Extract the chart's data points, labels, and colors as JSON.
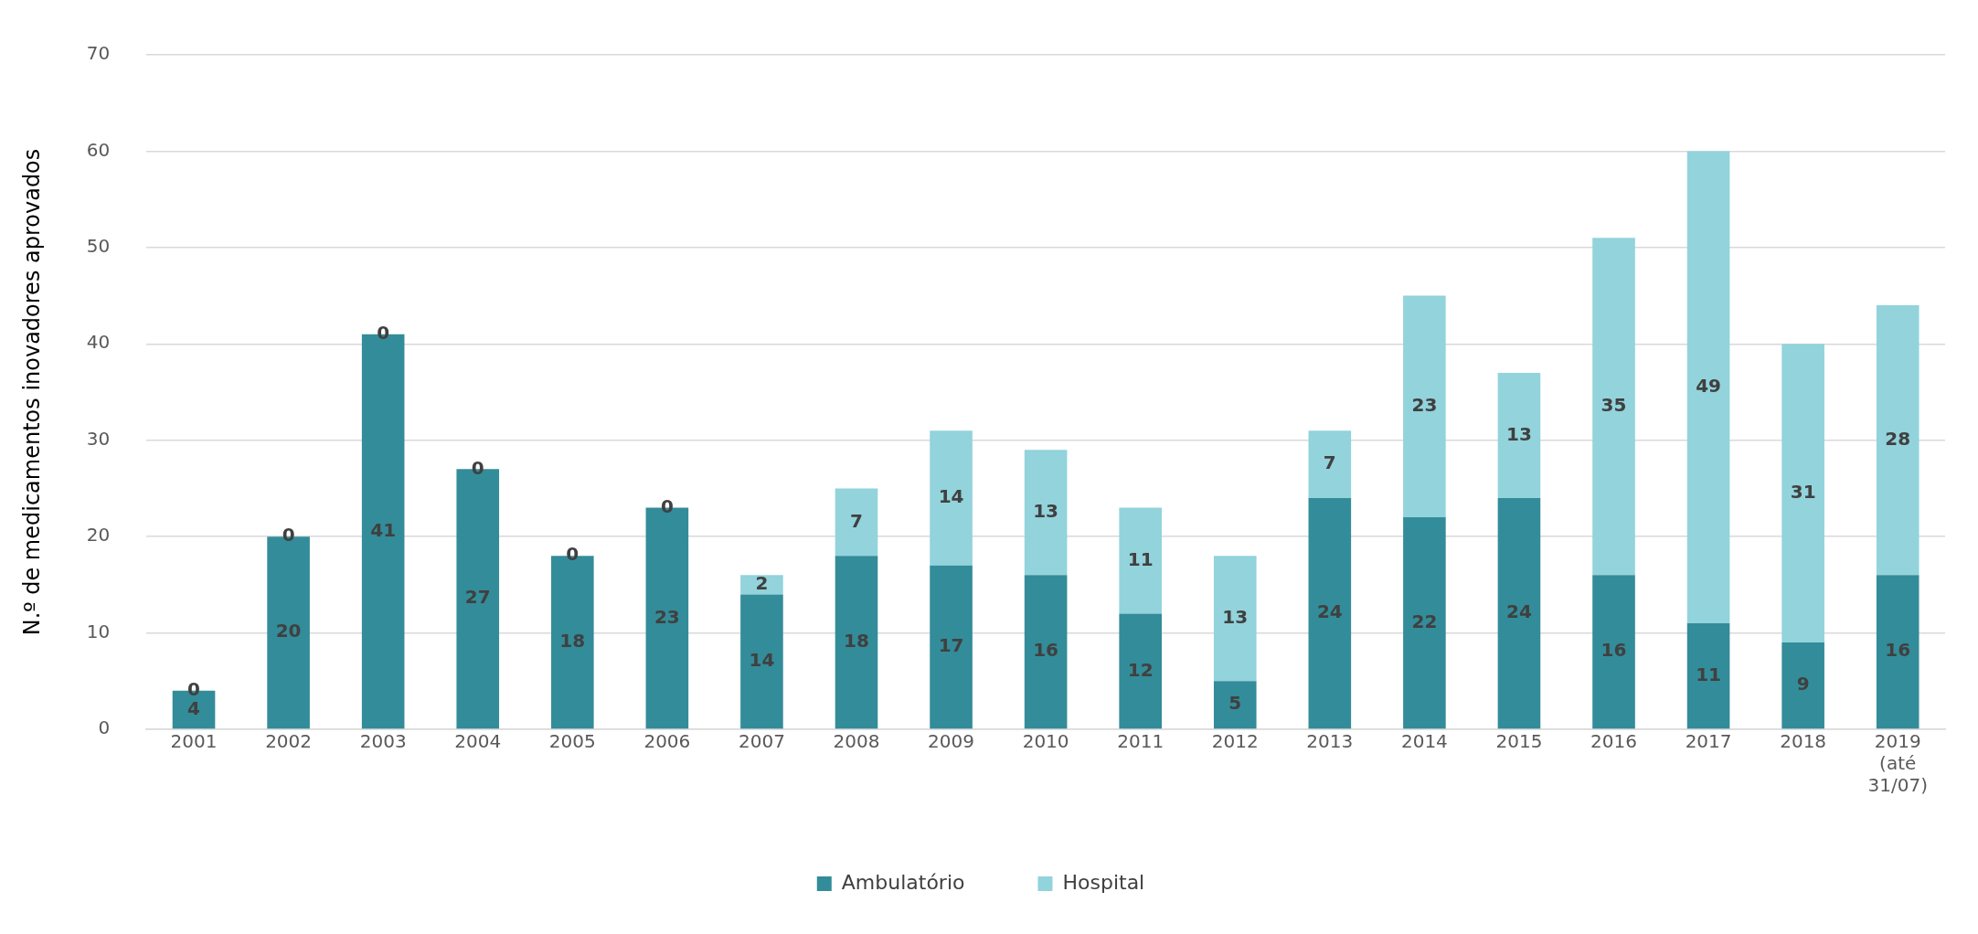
{
  "chart_data": {
    "type": "bar",
    "stacked": true,
    "ylabel": "N.º de medicamentos inovadores aprovados",
    "categories": [
      "2001",
      "2002",
      "2003",
      "2004",
      "2005",
      "2006",
      "2007",
      "2008",
      "2009",
      "2010",
      "2011",
      "2012",
      "2013",
      "2014",
      "2015",
      "2016",
      "2017",
      "2018",
      "2019 (até 31/07)"
    ],
    "series": [
      {
        "name": "Ambulatório",
        "color": "#338c99",
        "values": [
          4,
          20,
          41,
          27,
          18,
          23,
          14,
          18,
          17,
          16,
          12,
          5,
          24,
          22,
          24,
          16,
          11,
          9,
          16
        ]
      },
      {
        "name": "Hospital",
        "color": "#92d3dc",
        "values": [
          0,
          0,
          0,
          0,
          0,
          0,
          2,
          7,
          14,
          13,
          11,
          13,
          7,
          23,
          13,
          35,
          49,
          31,
          28
        ]
      }
    ],
    "ylim": [
      0,
      70
    ],
    "yticks": [
      0,
      10,
      20,
      30,
      40,
      50,
      60,
      70
    ],
    "grid": "y",
    "legend": "bottom",
    "data_labels": true
  }
}
